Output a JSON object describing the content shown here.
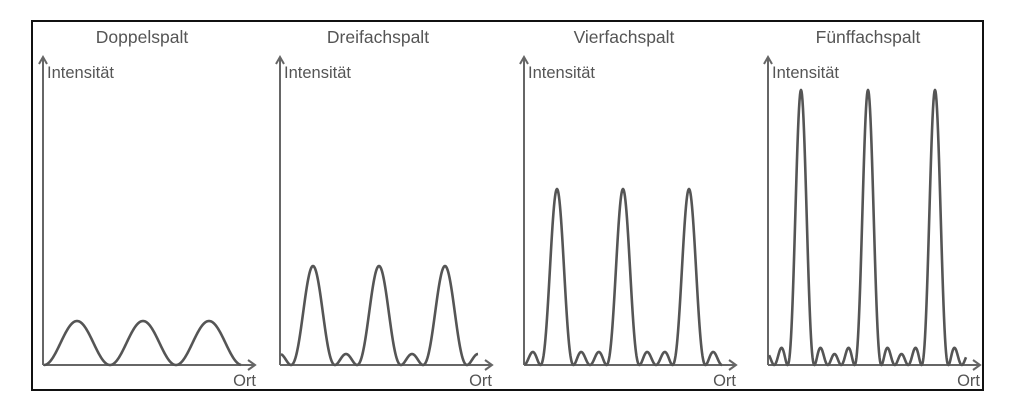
{
  "figure": {
    "panels": [
      {
        "title": "Doppelspalt",
        "ylabel": "Intensität",
        "xlabel": "Ort",
        "slits": 2
      },
      {
        "title": "Dreifachspalt",
        "ylabel": "Intensität",
        "xlabel": "Ort",
        "slits": 3
      },
      {
        "title": "Vierfachspalt",
        "ylabel": "Intensität",
        "xlabel": "Ort",
        "slits": 4
      },
      {
        "title": "Fünffachspalt",
        "ylabel": "Intensität",
        "xlabel": "Ort",
        "slits": 5
      }
    ],
    "colors": {
      "curve": "#555555",
      "axis": "#666666",
      "frame": "#111111",
      "text": "#555555"
    }
  },
  "chart_data": [
    {
      "type": "line",
      "title": "Doppelspalt",
      "xlabel": "Ort",
      "ylabel": "Intensität",
      "slits": 2,
      "principal_maxima_relative_intensity": 4,
      "principal_maxima_count_visible": 3,
      "secondary_maxima_between_principal": 0,
      "grid": false
    },
    {
      "type": "line",
      "title": "Dreifachspalt",
      "xlabel": "Ort",
      "ylabel": "Intensität",
      "slits": 3,
      "principal_maxima_relative_intensity": 9,
      "principal_maxima_count_visible": 3,
      "secondary_maxima_between_principal": 1,
      "grid": false
    },
    {
      "type": "line",
      "title": "Vierfachspalt",
      "xlabel": "Ort",
      "ylabel": "Intensität",
      "slits": 4,
      "principal_maxima_relative_intensity": 16,
      "principal_maxima_count_visible": 3,
      "secondary_maxima_between_principal": 2,
      "grid": false
    },
    {
      "type": "line",
      "title": "Fünffachspalt",
      "xlabel": "Ort",
      "ylabel": "Intensität",
      "slits": 5,
      "principal_maxima_relative_intensity": 25,
      "principal_maxima_count_visible": 3,
      "secondary_maxima_between_principal": 3,
      "grid": false
    }
  ]
}
